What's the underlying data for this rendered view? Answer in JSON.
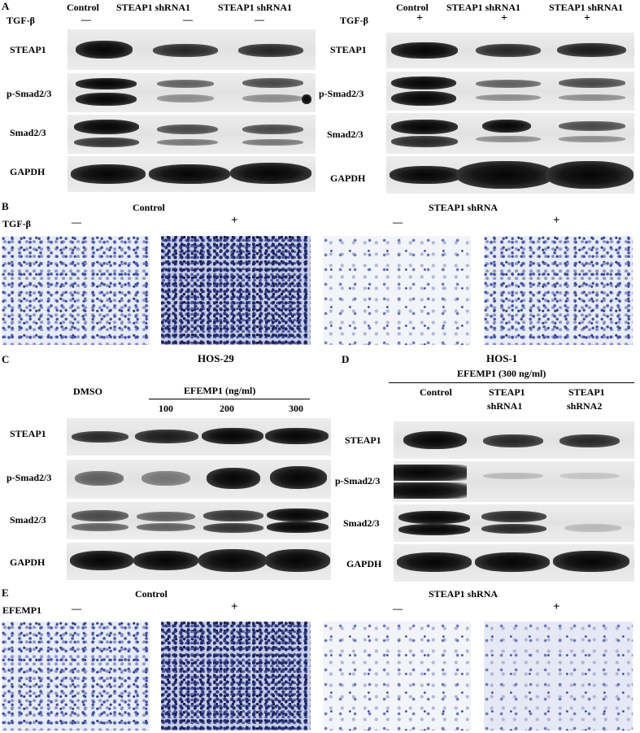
{
  "panelA": {
    "letter": "A",
    "left": {
      "treatment": "TGF-β",
      "lanes": [
        {
          "name": "Control",
          "sign": "—"
        },
        {
          "name": "STEAP1 shRNA1",
          "sign": "—"
        },
        {
          "name": "STEAP1 shRNA1",
          "sign": "—"
        }
      ]
    },
    "right": {
      "treatment": "TGF-β",
      "lanes": [
        {
          "name": "Control",
          "sign": "+"
        },
        {
          "name": "STEAP1 shRNA1",
          "sign": "+"
        },
        {
          "name": "STEAP1 shRNA1",
          "sign": "+"
        }
      ]
    },
    "rows": [
      "STEAP1",
      "p-Smad2/3",
      "Smad2/3",
      "GAPDH"
    ]
  },
  "panelB": {
    "letter": "B",
    "group1": "Control",
    "group2": "STEAP1 shRNA",
    "treatment": "TGF-β",
    "signs": [
      "—",
      "+",
      "—",
      "+"
    ]
  },
  "panelC": {
    "letter": "C",
    "title": "HOS-29",
    "dmso": "DMSO",
    "efemp": "EFEMP1 (ng/ml)",
    "doses": [
      "100",
      "200",
      "300"
    ],
    "rows": [
      "STEAP1",
      "p-Smad2/3",
      "Smad2/3",
      "GAPDH"
    ]
  },
  "panelD": {
    "letter": "D",
    "title": "HOS-1",
    "subtitle": "EFEMP1 (300 ng/ml)",
    "lanes": [
      {
        "l1": "Control",
        "l2": ""
      },
      {
        "l1": "STEAP1",
        "l2": "shRNA1"
      },
      {
        "l1": "STEAP1",
        "l2": "shRNA2"
      }
    ],
    "rows": [
      "STEAP1",
      "p-Smad2/3",
      "Smad2/3",
      "GAPDH"
    ]
  },
  "panelE": {
    "letter": "E",
    "group1": "Control",
    "group2": "STEAP1 shRNA",
    "treatment": "EFEMP1",
    "signs": [
      "—",
      "+",
      "—",
      "+"
    ]
  }
}
